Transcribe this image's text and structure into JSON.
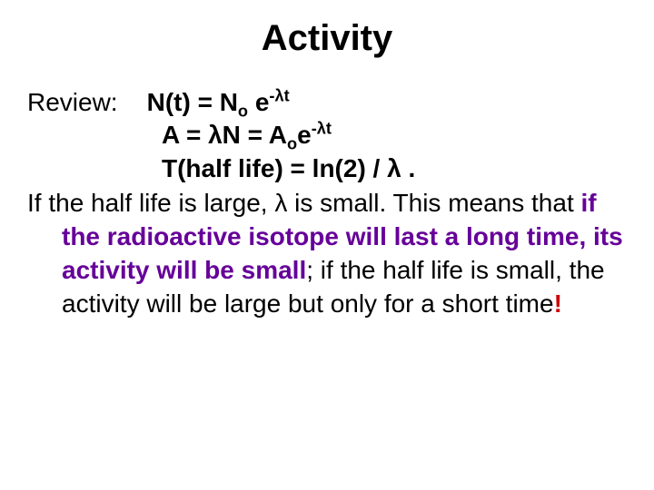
{
  "title": "Activity",
  "review_label": "Review:",
  "eq1": {
    "lhs": "N(t) = N",
    "sub1": "o",
    "mid": " e",
    "sup": "-λt"
  },
  "eq2": {
    "lhs": "A = λN  = A",
    "sub1": "o",
    "mid": "e",
    "sup": "-λt"
  },
  "eq3": {
    "txt": "T(half life) = ln(2) / λ ."
  },
  "para": {
    "p1a": "If the half life is large, λ is small.  This means",
    "p2a": "that ",
    "p2b": "if the radioactive isotope will last a",
    "p3a": "long time, its activity will be small",
    "p3b": ";  if the",
    "p4a": "half life is small, the activity will be large",
    "p5a": "but only for a short time",
    "p5b": "!"
  },
  "colors": {
    "purple": "#660099",
    "red": "#cc0000",
    "black": "#000000"
  },
  "fonts": {
    "title_pt": 40,
    "body_pt": 28,
    "weight_title": "bold",
    "weight_body": "bold"
  }
}
